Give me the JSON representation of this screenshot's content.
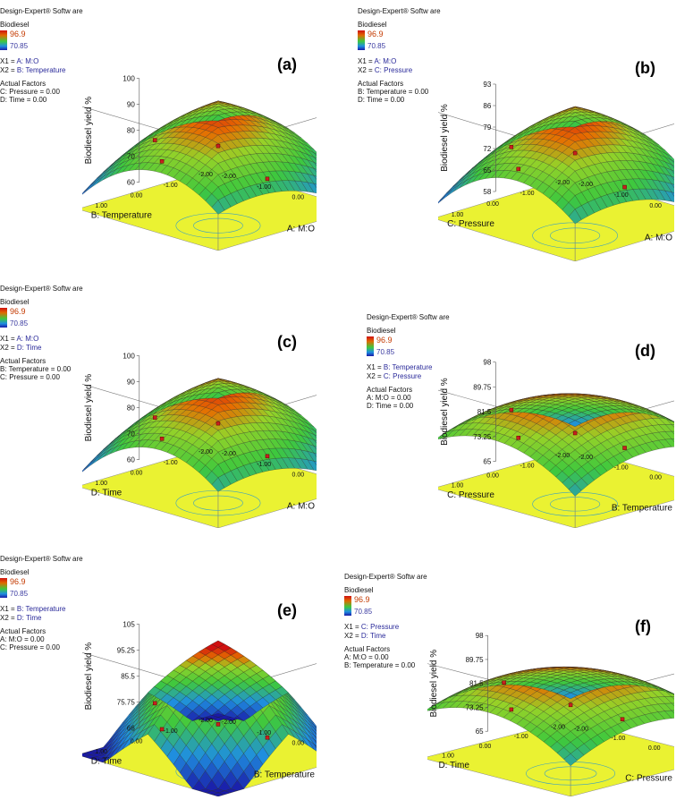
{
  "colors": {
    "surface_hi": "#c81010",
    "surface_mid": "#30c030",
    "surface_lo": "#1018b0",
    "floor": "#eaf232",
    "marker": "#c82020"
  },
  "chart_data": [
    {
      "type": "surface3d",
      "panel_label": "(a)",
      "software": "Design-Expert® Softw are",
      "response": "Biodiesel",
      "legend_max": "96.9",
      "legend_min": "70.85",
      "x1_prefix": "X1 = ",
      "x1": "A: M:O",
      "x2_prefix": "X2 = ",
      "x2": "B: Temperature",
      "actual_title": "Actual Factors",
      "actual": [
        "C: Pressure = 0.00",
        "D: Time = 0.00"
      ],
      "zlabel": "Biodiesel yield %",
      "zticks": [
        "100",
        "90",
        "80",
        "70",
        "60"
      ],
      "xlabel": "A: M:O",
      "ylabel": "B: Temperature",
      "xticks": [
        "-2.00",
        "-1.00",
        "0.00",
        "1.00",
        "2.00"
      ],
      "yticks": [
        "-2.00",
        "-1.00",
        "0.00",
        "1.00",
        "2.00"
      ],
      "shape": "ridge"
    },
    {
      "type": "surface3d",
      "panel_label": "(b)",
      "software": "Design-Expert® Softw are",
      "response": "Biodiesel",
      "legend_max": "96.9",
      "legend_min": "70.85",
      "x1_prefix": "X1 = ",
      "x1": "A: M:O",
      "x2_prefix": "X2 = ",
      "x2": "C: Pressure",
      "actual_title": "Actual Factors",
      "actual": [
        "B: Temperature = 0.00",
        "D: Time = 0.00"
      ],
      "zlabel": "Biodiesel yield %",
      "zticks": [
        "93",
        "86",
        "79",
        "72",
        "65",
        "58"
      ],
      "xlabel": "A: M:O",
      "ylabel": "C: Pressure",
      "xticks": [
        "-2.00",
        "-1.00",
        "0.00",
        "1.00",
        "2.00"
      ],
      "yticks": [
        "-2.00",
        "-1.00",
        "0.00",
        "1.00",
        "2.00"
      ],
      "shape": "ridge"
    },
    {
      "type": "surface3d",
      "panel_label": "(c)",
      "software": "Design-Expert® Softw are",
      "response": "Biodiesel",
      "legend_max": "96.9",
      "legend_min": "70.85",
      "x1_prefix": "X1 = ",
      "x1": "A: M:O",
      "x2_prefix": "X2 = ",
      "x2": "D: Time",
      "actual_title": "Actual Factors",
      "actual": [
        "B: Temperature = 0.00",
        "C: Pressure = 0.00"
      ],
      "zlabel": "Biodiesel yield %",
      "zticks": [
        "100",
        "90",
        "80",
        "70",
        "60"
      ],
      "xlabel": "A: M:O",
      "ylabel": "D: Time",
      "xticks": [
        "-2.00",
        "-1.00",
        "0.00",
        "1.00",
        "2.00"
      ],
      "yticks": [
        "-2.00",
        "-1.00",
        "0.00",
        "1.00",
        "2.00"
      ],
      "shape": "ridge"
    },
    {
      "type": "surface3d",
      "panel_label": "(d)",
      "software": "Design-Expert® Softw are",
      "response": "Biodiesel",
      "legend_max": "96.9",
      "legend_min": "70.85",
      "x1_prefix": "X1 = ",
      "x1": "B: Temperature",
      "x2_prefix": "X2 = ",
      "x2": "C: Pressure",
      "actual_title": "Actual Factors",
      "actual": [
        "A: M:O = 0.00",
        "D: Time = 0.00"
      ],
      "zlabel": "Biodiesel yield %",
      "zticks": [
        "98",
        "89.75",
        "81.5",
        "73.25",
        "65"
      ],
      "xlabel": "B: Temperature",
      "ylabel": "C: Pressure",
      "xticks": [
        "-2.00",
        "-1.00",
        "0.00",
        "1.00",
        "2.00"
      ],
      "yticks": [
        "-2.00",
        "-1.00",
        "0.00",
        "1.00",
        "2.00"
      ],
      "shape": "dome"
    },
    {
      "type": "surface3d",
      "panel_label": "(e)",
      "software": "Design-Expert® Softw are",
      "response": "Biodiesel",
      "legend_max": "96.9",
      "legend_min": "70.85",
      "x1_prefix": "X1 = ",
      "x1": "B: Temperature",
      "x2_prefix": "X2 = ",
      "x2": "D: Time",
      "actual_title": "Actual Factors",
      "actual": [
        "A: M:O = 0.00",
        "C: Pressure = 0.00"
      ],
      "zlabel": "Biodiesel yield %",
      "zticks": [
        "105",
        "95.25",
        "85.5",
        "75.75",
        "66"
      ],
      "xlabel": "B: Temperature",
      "ylabel": "D: Time",
      "xticks": [
        "-2.00",
        "-1.00",
        "0.00",
        "1.00",
        "2.00"
      ],
      "yticks": [
        "-2.00",
        "-1.00",
        "0.00",
        "1.00",
        "2.00"
      ],
      "shape": "peak"
    },
    {
      "type": "surface3d",
      "panel_label": "(f)",
      "software": "Design-Expert® Softw are",
      "response": "Biodiesel",
      "legend_max": "96.9",
      "legend_min": "70.85",
      "x1_prefix": "X1 = ",
      "x1": "C: Pressure",
      "x2_prefix": "X2 = ",
      "x2": "D: Time",
      "actual_title": "Actual Factors",
      "actual": [
        "A: M:O = 0.00",
        "B: Temperature = 0.00"
      ],
      "zlabel": "Biodiesel yield %",
      "zticks": [
        "98",
        "89.75",
        "81.5",
        "73.25",
        "65"
      ],
      "xlabel": "C: Pressure",
      "ylabel": "D: Time",
      "xticks": [
        "-2.00",
        "-1.00",
        "0.00",
        "1.00",
        "2.00"
      ],
      "yticks": [
        "-2.00",
        "-1.00",
        "0.00",
        "1.00",
        "2.00"
      ],
      "shape": "dome"
    }
  ]
}
